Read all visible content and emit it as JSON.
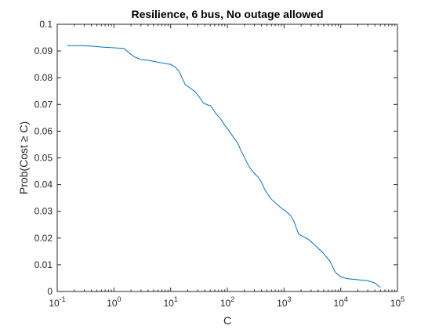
{
  "chart_data": {
    "type": "line",
    "title": "Resilience, 6 bus, No outage allowed",
    "xlabel": "C",
    "ylabel": "Prob(Cost ≥ C)",
    "xscale": "log",
    "xlim": [
      0.1,
      100000
    ],
    "ylim": [
      0,
      0.1
    ],
    "grid": false,
    "legend": "none",
    "x_ticks": [
      {
        "value": 0.1,
        "base": "10",
        "exp": "-1"
      },
      {
        "value": 1,
        "base": "10",
        "exp": "0"
      },
      {
        "value": 10,
        "base": "10",
        "exp": "1"
      },
      {
        "value": 100,
        "base": "10",
        "exp": "2"
      },
      {
        "value": 1000,
        "base": "10",
        "exp": "3"
      },
      {
        "value": 10000,
        "base": "10",
        "exp": "4"
      },
      {
        "value": 100000,
        "base": "10",
        "exp": "5"
      }
    ],
    "y_ticks": [
      {
        "value": 0,
        "label": "0"
      },
      {
        "value": 0.01,
        "label": "0.01"
      },
      {
        "value": 0.02,
        "label": "0.02"
      },
      {
        "value": 0.03,
        "label": "0.03"
      },
      {
        "value": 0.04,
        "label": "0.04"
      },
      {
        "value": 0.05,
        "label": "0.05"
      },
      {
        "value": 0.06,
        "label": "0.06"
      },
      {
        "value": 0.07,
        "label": "0.07"
      },
      {
        "value": 0.08,
        "label": "0.08"
      },
      {
        "value": 0.09,
        "label": "0.09"
      },
      {
        "value": 0.1,
        "label": "0.1"
      }
    ],
    "series": [
      {
        "color": "#0072BD",
        "x": [
          0.15,
          0.3,
          0.6,
          1.0,
          1.5,
          1.8,
          2.3,
          3.0,
          4.0,
          6.0,
          8.0,
          10.0,
          12.0,
          14.0,
          16.0,
          18.0,
          20.0,
          23.0,
          27.0,
          32.0,
          38.0,
          45.0,
          50.0,
          56.0,
          63.0,
          75.0,
          90.0,
          110.0,
          130.0,
          150.0,
          170.0,
          200.0,
          240.0,
          290.0,
          350.0,
          400.0,
          450.0,
          500.0,
          600.0,
          700.0,
          900.0,
          1100.0,
          1300.0,
          1500.0,
          1800.0,
          2200.0,
          2700.0,
          3300.0,
          4000.0,
          5000.0,
          6500.0,
          8000.0,
          10000.0,
          13000.0,
          20000.0,
          30000.0,
          40000.0,
          50000.0
        ],
        "y": [
          0.092,
          0.092,
          0.0915,
          0.0912,
          0.091,
          0.0895,
          0.0878,
          0.0868,
          0.0865,
          0.0858,
          0.0853,
          0.085,
          0.084,
          0.0825,
          0.0798,
          0.0775,
          0.0768,
          0.0758,
          0.0748,
          0.0728,
          0.0705,
          0.0698,
          0.0696,
          0.0683,
          0.0665,
          0.0648,
          0.0622,
          0.0598,
          0.0575,
          0.0558,
          0.0532,
          0.0502,
          0.0468,
          0.0445,
          0.0428,
          0.0408,
          0.0385,
          0.0368,
          0.0345,
          0.0332,
          0.0312,
          0.0298,
          0.0285,
          0.0262,
          0.0215,
          0.0205,
          0.0195,
          0.0178,
          0.0162,
          0.0142,
          0.0112,
          0.0072,
          0.0055,
          0.0048,
          0.0044,
          0.004,
          0.0032,
          0.0015
        ]
      }
    ]
  }
}
